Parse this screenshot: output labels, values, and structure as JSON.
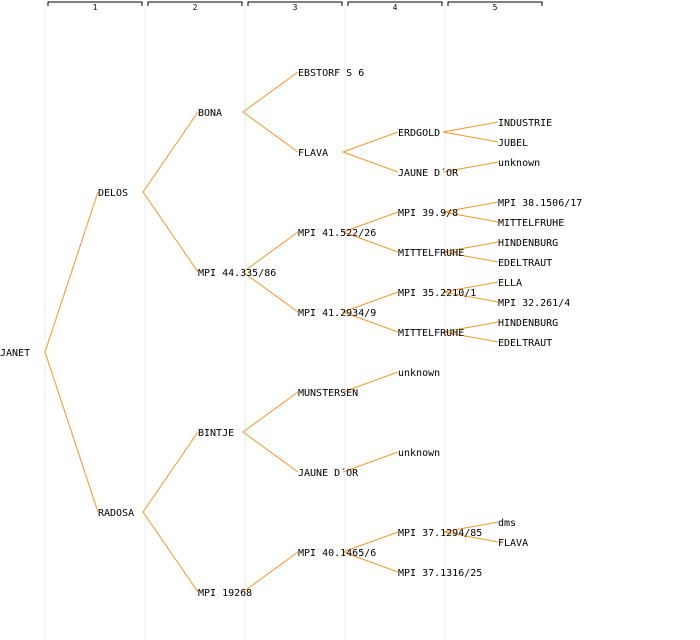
{
  "colors": {
    "edge": "#f0962a",
    "label": "#000000",
    "link": "#1a1ac8",
    "gridline": "#eeeeee",
    "header_bracket": "#000000"
  },
  "generation_headers": [
    "1",
    "2",
    "3",
    "4",
    "5"
  ],
  "tree": {
    "label": "JANET",
    "children": [
      {
        "label": "DELOS",
        "children": [
          {
            "label": "BONA",
            "children": [
              {
                "label": "EBSTORF S 6"
              },
              {
                "label": "FLAVA",
                "children": [
                  {
                    "label": "ERDGOLD",
                    "children": [
                      {
                        "label": "INDUSTRIE"
                      },
                      {
                        "label": "JUBEL"
                      }
                    ]
                  },
                  {
                    "label": "JAUNE D´OR",
                    "children": [
                      {
                        "label": "unknown"
                      }
                    ]
                  }
                ]
              }
            ]
          },
          {
            "label": "MPI 44.335/86",
            "children": [
              {
                "label": "MPI 41.522/26",
                "children": [
                  {
                    "label": "MPI 39.9/8",
                    "children": [
                      {
                        "label": "MPI 38.1506/17"
                      },
                      {
                        "label": "MITTELFRUHE"
                      }
                    ]
                  },
                  {
                    "label": "MITTELFRUHE",
                    "children": [
                      {
                        "label": "HINDENBURG"
                      },
                      {
                        "label": "EDELTRAUT"
                      }
                    ]
                  }
                ]
              },
              {
                "label": "MPI 41.2934/9",
                "children": [
                  {
                    "label": "MPI 35.2210/1",
                    "children": [
                      {
                        "label": "ELLA"
                      },
                      {
                        "label": "MPI 32.261/4"
                      }
                    ]
                  },
                  {
                    "label": "MITTELFRUHE",
                    "children": [
                      {
                        "label": "HINDENBURG"
                      },
                      {
                        "label": "EDELTRAUT"
                      }
                    ]
                  }
                ]
              }
            ]
          }
        ]
      },
      {
        "label": "RADOSA",
        "children": [
          {
            "label": "BINTJE",
            "children": [
              {
                "label": "MUNSTERSEN",
                "children": [
                  {
                    "label": "unknown"
                  }
                ]
              },
              {
                "label": "JAUNE D´OR",
                "children": [
                  {
                    "label": "unknown"
                  }
                ]
              }
            ]
          },
          {
            "label": "MPI 19268",
            "link": true,
            "children": [
              {
                "label": "MPI 40.1465/6",
                "children": [
                  {
                    "label": "MPI 37.1294/85",
                    "children": [
                      {
                        "label": "dms"
                      },
                      {
                        "label": "FLAVA"
                      }
                    ]
                  },
                  {
                    "label": "MPI 37.1316/25"
                  }
                ]
              }
            ]
          }
        ]
      }
    ]
  }
}
